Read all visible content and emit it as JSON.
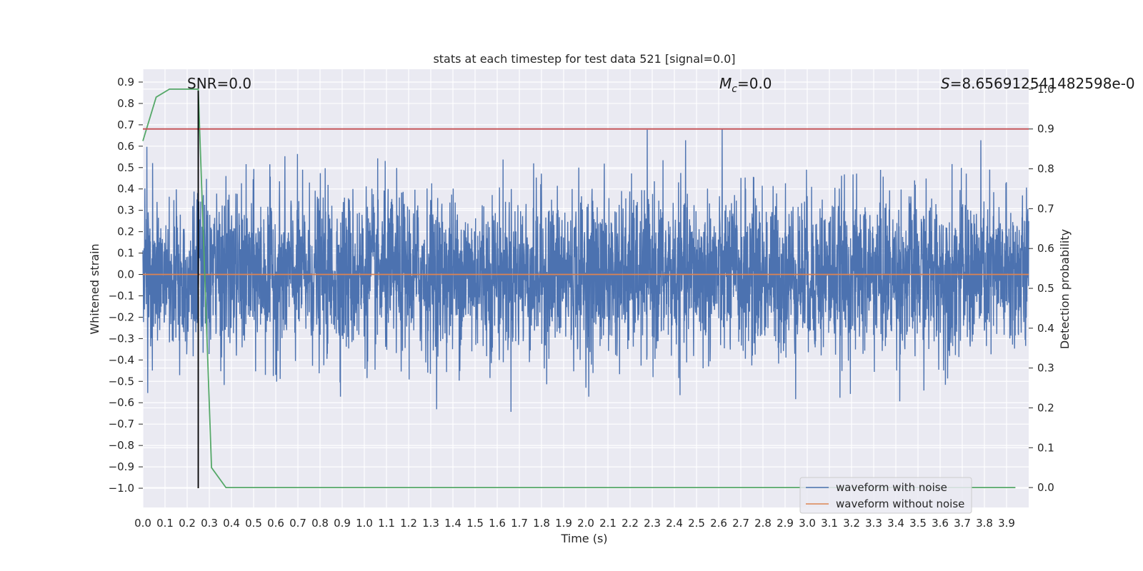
{
  "chart_data": {
    "type": "line",
    "title": "stats at each timestep for test data 521 [signal=0.0]",
    "xlabel": "Time (s)",
    "ylabel": "Whitened strain",
    "y2label": "Detection probability",
    "xlim": [
      0.0,
      4.0
    ],
    "ylim": [
      -1.09,
      0.96
    ],
    "y2lim": [
      -0.05,
      1.05
    ],
    "x_ticks": [
      "0.0",
      "0.1",
      "0.2",
      "0.3",
      "0.4",
      "0.5",
      "0.6",
      "0.7",
      "0.8",
      "0.9",
      "1.0",
      "1.1",
      "1.2",
      "1.3",
      "1.4",
      "1.5",
      "1.6",
      "1.7",
      "1.8",
      "1.9",
      "2.0",
      "2.1",
      "2.2",
      "2.3",
      "2.4",
      "2.5",
      "2.6",
      "2.7",
      "2.8",
      "2.9",
      "3.0",
      "3.1",
      "3.2",
      "3.3",
      "3.4",
      "3.5",
      "3.6",
      "3.7",
      "3.8",
      "3.9"
    ],
    "y_ticks": [
      "0.9",
      "0.8",
      "0.7",
      "0.6",
      "0.5",
      "0.4",
      "0.3",
      "0.2",
      "0.1",
      "0.0",
      "−0.1",
      "−0.2",
      "−0.3",
      "−0.4",
      "−0.5",
      "−0.6",
      "−0.7",
      "−0.8",
      "−0.9",
      "−1.0"
    ],
    "y2_ticks": [
      "0.0",
      "0.1",
      "0.2",
      "0.3",
      "0.4",
      "0.5",
      "0.6",
      "0.7",
      "0.8",
      "0.9",
      "1.0"
    ],
    "grid": true,
    "legend_placement": "bottom-right",
    "series": [
      {
        "name": "waveform with noise",
        "color": "#4c72b0",
        "axis": "left",
        "kind": "noise",
        "amplitude_range": [
          -1.0,
          0.85
        ]
      },
      {
        "name": "waveform without noise",
        "color": "#dd8452",
        "axis": "left",
        "x": [
          0.0,
          4.0
        ],
        "y": [
          0.0,
          0.0
        ]
      },
      {
        "color": "#55a868",
        "axis": "right",
        "x": [
          0.0,
          0.06,
          0.12,
          0.18,
          0.25,
          0.31,
          0.375,
          3.94
        ],
        "y": [
          0.87,
          0.98,
          1.0,
          1.0,
          1.0,
          0.05,
          0.0,
          0.0
        ]
      },
      {
        "color": "#c44e52",
        "axis": "right",
        "x": [
          0.0,
          4.0
        ],
        "y": [
          0.9,
          0.9
        ]
      }
    ],
    "vlines": [
      {
        "x": 0.25,
        "ymin": -1.0,
        "ymax": 0.86,
        "color": "#000000"
      }
    ],
    "annotations": {
      "snr": "SNR=0.0",
      "mc_symbol": "M",
      "mc_sub": "c",
      "mc_value": "=0.0",
      "s_symbol": "S",
      "s_value": "=8.656912541482598e-0"
    }
  }
}
